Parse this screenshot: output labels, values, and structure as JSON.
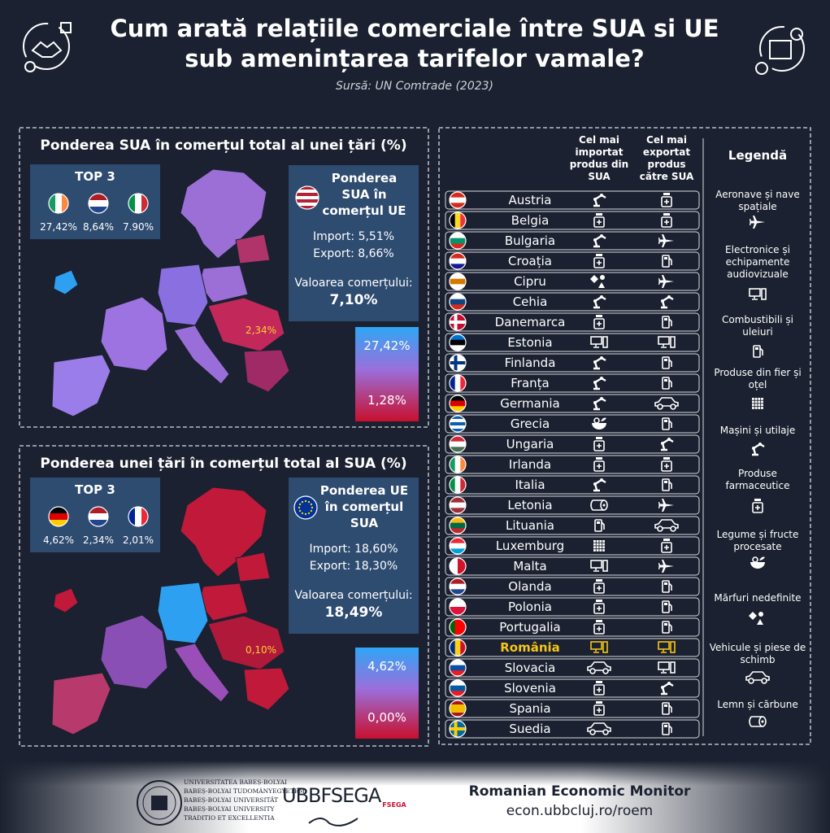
{
  "header": {
    "title": [
      "Cum arată relațiile comerciale  între SUA si UE",
      "sub amenințarea tarifelor vamale?"
    ],
    "source": "Sursă: UN Comtrade (2023)"
  },
  "panels": [
    {
      "title": "Ponderea SUA în comerțul total al unei țări (%)",
      "top3_title": "TOP 3",
      "top3": [
        "27,42%",
        "8,64%",
        "7.90%"
      ],
      "box_title": "Ponderea SUA în comerțul UE",
      "import": "Import: 5,51%",
      "export": "Export: 8,66%",
      "trade_label": "Valoarea comerțului:",
      "trade_value": "7,10%",
      "map_label": "2,34%",
      "scale_max": "27,42%",
      "scale_min": "1,28%"
    },
    {
      "title": "Ponderea unei țări în comerțul total al SUA (%)",
      "top3_title": "TOP 3",
      "top3": [
        "4,62%",
        "2,34%",
        "2,01%"
      ],
      "box_title": "Ponderea UE în comerțul SUA",
      "import": "Import: 18,60%",
      "export": "Export: 18,30%",
      "trade_label": "Valoarea comerțului:",
      "trade_value": "18,49%",
      "map_label": "0,10%",
      "scale_max": "4,62%",
      "scale_min": "0,00%"
    }
  ],
  "table": {
    "headers": [
      "Cel mai importat produs din SUA",
      "Cel mai exportat produs către SUA"
    ],
    "rows": [
      {
        "country": "Austria",
        "import": "Mașini și utilaje",
        "export": "Produse farmaceutice"
      },
      {
        "country": "Belgia",
        "import": "Produse farmaceutice",
        "export": "Produse farmaceutice"
      },
      {
        "country": "Bulgaria",
        "import": "Mașini și utilaje",
        "export": "Aeronave și nave spațiale"
      },
      {
        "country": "Croația",
        "import": "Produse farmaceutice",
        "export": "Combustibili și uleiuri"
      },
      {
        "country": "Cipru",
        "import": "Mărfuri nedefinite",
        "export": "Aeronave și nave spațiale"
      },
      {
        "country": "Cehia",
        "import": "Mașini și utilaje",
        "export": "Mașini și utilaje"
      },
      {
        "country": "Danemarca",
        "import": "Produse farmaceutice",
        "export": "Combustibili și uleiuri"
      },
      {
        "country": "Estonia",
        "import": "Electronice și echipamente audiovizuale",
        "export": "Electronice și echipamente audiovizuale"
      },
      {
        "country": "Finlanda",
        "import": "Mașini și utilaje",
        "export": "Combustibili și uleiuri"
      },
      {
        "country": "Franța",
        "import": "Mașini și utilaje",
        "export": "Combustibili și uleiuri"
      },
      {
        "country": "Germania",
        "import": "Mașini și utilaje",
        "export": "Vehicule și piese de schimb"
      },
      {
        "country": "Grecia",
        "import": "Legume și fructe procesate",
        "export": "Combustibili și uleiuri"
      },
      {
        "country": "Ungaria",
        "import": "Produse farmaceutice",
        "export": "Mașini și utilaje"
      },
      {
        "country": "Irlanda",
        "import": "Produse farmaceutice",
        "export": "Produse farmaceutice"
      },
      {
        "country": "Italia",
        "import": "Mașini și utilaje",
        "export": "Combustibili și uleiuri"
      },
      {
        "country": "Letonia",
        "import": "Lemn și cărbune",
        "export": "Aeronave și nave spațiale"
      },
      {
        "country": "Lituania",
        "import": "Combustibili și uleiuri",
        "export": "Vehicule și piese de schimb"
      },
      {
        "country": "Luxemburg",
        "import": "Produse din fier și oțel",
        "export": "Produse farmaceutice"
      },
      {
        "country": "Malta",
        "import": "Electronice și echipamente audiovizuale",
        "export": "Aeronave și nave spațiale"
      },
      {
        "country": "Olanda",
        "import": "Produse farmaceutice",
        "export": "Combustibili și uleiuri"
      },
      {
        "country": "Polonia",
        "import": "Produse farmaceutice",
        "export": "Combustibili și uleiuri"
      },
      {
        "country": "Portugalia",
        "import": "Produse farmaceutice",
        "export": "Combustibili și uleiuri"
      },
      {
        "country": "România",
        "import": "Electronice și echipamente audiovizuale",
        "export": "Electronice și echipamente audiovizuale",
        "highlight": true
      },
      {
        "country": "Slovacia",
        "import": "Vehicule și piese de schimb",
        "export": "Electronice și echipamente audiovizuale"
      },
      {
        "country": "Slovenia",
        "import": "Produse farmaceutice",
        "export": "Mașini și utilaje"
      },
      {
        "country": "Spania",
        "import": "Produse farmaceutice",
        "export": "Combustibili și uleiuri"
      },
      {
        "country": "Suedia",
        "import": "Vehicule și piese de schimb",
        "export": "Combustibili și uleiuri"
      }
    ]
  },
  "legend": {
    "title": "Legendă",
    "items": [
      "Aeronave și nave spațiale",
      "Electronice și echipamente audiovizuale",
      "Combustibili și uleiuri",
      "Produse din fier și oțel",
      "Mașini și utilaje",
      "Produse farmaceutice",
      "Legume și fructe procesate",
      "Mărfuri nedefinite",
      "Vehicule și piese de schimb",
      "Lemn și cărbune"
    ]
  },
  "footer": {
    "university": [
      "UNIVERSITATEA BABEȘ-BOLYAI",
      "BABEȘ-BOLYAI TUDOMÁNYEGYETEM",
      "BABEȘ-BOLYAI UNIVERSITÄT",
      "BABEȘ-BOLYAI UNIVERSITY",
      "TRADITIO ET EXCELLENTIA"
    ],
    "faculty": "UBBFSEGA",
    "faculty_badge": "FSEGA",
    "monitor": "Romanian Economic Monitor",
    "url": "econ.ubbcluj.ro/roem"
  }
}
